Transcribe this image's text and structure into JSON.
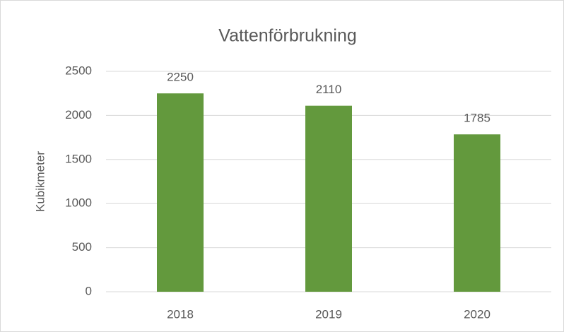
{
  "chart_data": {
    "type": "bar",
    "title": "Vattenförbrukning",
    "y_label": "Kubikmeter",
    "categories": [
      "2018",
      "2019",
      "2020"
    ],
    "values": [
      2250,
      2110,
      1785
    ],
    "color": "#63993d",
    "ylim": [
      0,
      2500
    ],
    "yticks": [
      0,
      500,
      1000,
      1500,
      2000,
      2500
    ],
    "grid": true
  }
}
